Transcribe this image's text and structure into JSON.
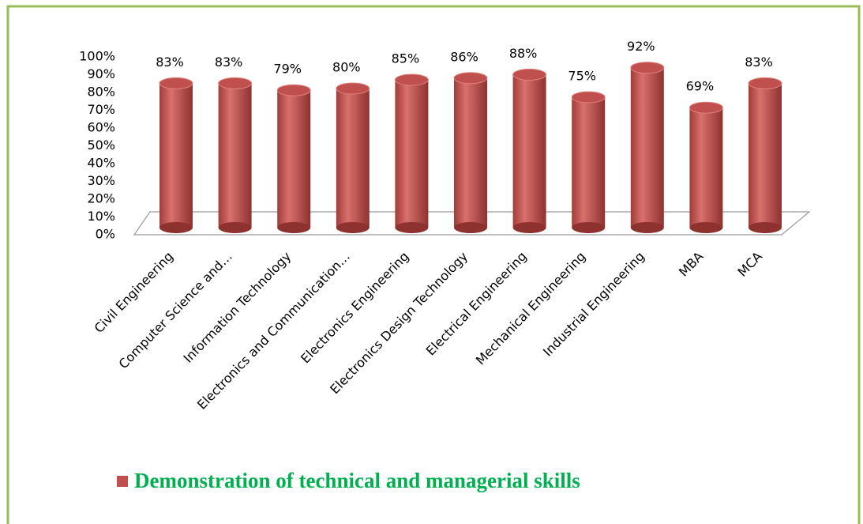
{
  "chart_data": {
    "type": "bar",
    "categories": [
      "Civil Engineering",
      "Computer Science and…",
      "Information Technology",
      "Electronics and Communication…",
      "Electronics Engineering",
      "Electronics Design Technology",
      "Electrical Engineering",
      "Mechanical Engineering",
      "Industrial Engineering",
      "MBA",
      "MCA"
    ],
    "series": [
      {
        "name": "Demonstration of technical and managerial skills",
        "color": "#c0504d",
        "values": [
          83,
          83,
          79,
          80,
          85,
          86,
          88,
          75,
          92,
          69,
          83
        ],
        "value_labels": [
          "83%",
          "83%",
          "79%",
          "80%",
          "85%",
          "86%",
          "88%",
          "75%",
          "92%",
          "69%",
          "83%"
        ]
      }
    ],
    "ylim": [
      0,
      100
    ],
    "yticks": [
      {
        "value": 0,
        "label": "0%"
      },
      {
        "value": 10,
        "label": "10%"
      },
      {
        "value": 20,
        "label": "20%"
      },
      {
        "value": 30,
        "label": "30%"
      },
      {
        "value": 40,
        "label": "40%"
      },
      {
        "value": 50,
        "label": "50%"
      },
      {
        "value": 60,
        "label": "60%"
      },
      {
        "value": 70,
        "label": "70%"
      },
      {
        "value": 80,
        "label": "80%"
      },
      {
        "value": 90,
        "label": "90%"
      },
      {
        "value": {
          "value": 100,
          "label": "100%"
        }
      }
    ],
    "grid": false
  }
}
